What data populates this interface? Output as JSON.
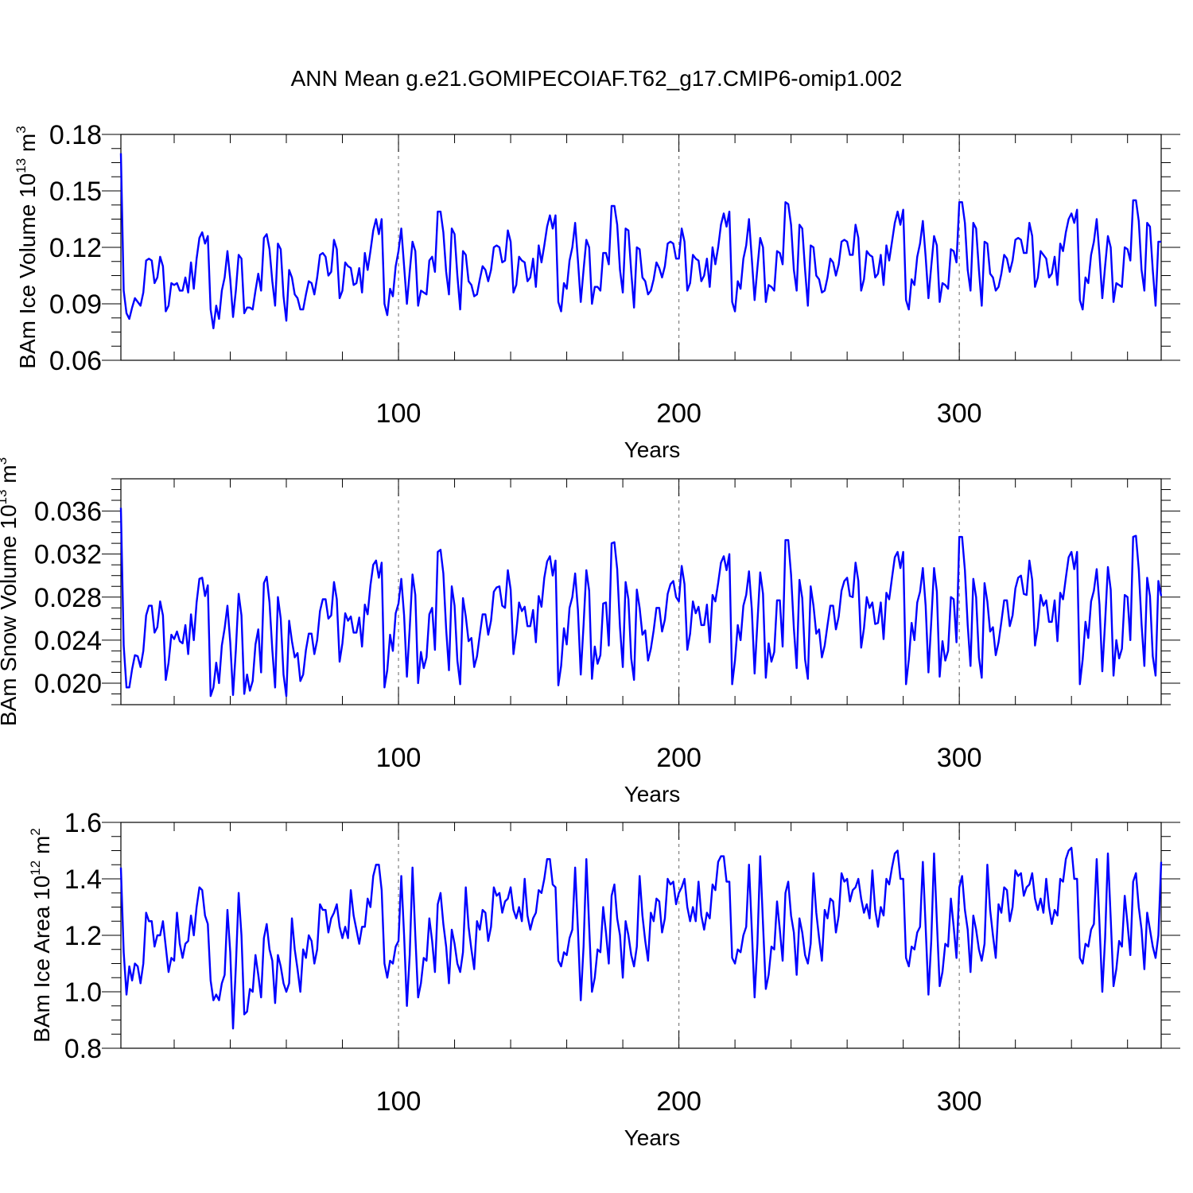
{
  "figure_title": "ANN Mean g.e21.GOMIPECOIAF.T62_g17.CMIP6-omip1.002",
  "colors": {
    "line": "#0000ff",
    "axis": "#000000",
    "refline": "#808080",
    "background": "#ffffff"
  },
  "chart_data": [
    {
      "type": "line",
      "title": "",
      "xlabel": "Years",
      "ylabel_main": "BAm Ice Volume 10",
      "ylabel_exp": "13",
      "ylabel_unit": " m",
      "ylabel_unit_exp": "3",
      "xlim": [
        1,
        372
      ],
      "ylim": [
        0.06,
        0.18
      ],
      "xticks": [
        100,
        200,
        300
      ],
      "xtick_labels": [
        "100",
        "200",
        "300"
      ],
      "yticks": [
        0.06,
        0.09,
        0.12,
        0.15,
        0.18
      ],
      "ytick_labels": [
        "0.06",
        "0.09",
        "0.12",
        "0.15",
        "0.18"
      ],
      "ref_lines_x": [
        100,
        200,
        300
      ],
      "x_start": 1,
      "values": [
        0.17,
        0.097,
        0.085,
        0.082,
        0.088,
        0.093,
        0.091,
        0.089,
        0.096,
        0.113,
        0.114,
        0.113,
        0.101,
        0.104,
        0.115,
        0.11,
        0.086,
        0.089,
        0.101,
        0.1,
        0.101,
        0.097,
        0.097,
        0.104,
        0.096,
        0.112,
        0.098,
        0.114,
        0.125,
        0.128,
        0.122,
        0.126,
        0.087,
        0.077,
        0.089,
        0.082,
        0.097,
        0.104,
        0.118,
        0.103,
        0.083,
        0.097,
        0.116,
        0.114,
        0.085,
        0.088,
        0.088,
        0.087,
        0.097,
        0.106,
        0.097,
        0.125,
        0.127,
        0.119,
        0.102,
        0.089,
        0.122,
        0.119,
        0.094,
        0.081,
        0.108,
        0.104,
        0.095,
        0.093,
        0.087,
        0.087,
        0.095,
        0.102,
        0.101,
        0.095,
        0.104,
        0.116,
        0.117,
        0.115,
        0.105,
        0.107,
        0.124,
        0.119,
        0.093,
        0.097,
        0.112,
        0.11,
        0.109,
        0.1,
        0.101,
        0.109,
        0.096,
        0.117,
        0.108,
        0.118,
        0.129,
        0.135,
        0.127,
        0.135,
        0.09,
        0.084,
        0.098,
        0.094,
        0.11,
        0.118,
        0.13,
        0.11,
        0.09,
        0.107,
        0.123,
        0.118,
        0.089,
        0.097,
        0.096,
        0.095,
        0.113,
        0.115,
        0.107,
        0.139,
        0.139,
        0.128,
        0.107,
        0.095,
        0.13,
        0.127,
        0.105,
        0.087,
        0.118,
        0.116,
        0.102,
        0.1,
        0.094,
        0.095,
        0.103,
        0.11,
        0.108,
        0.102,
        0.108,
        0.12,
        0.121,
        0.12,
        0.112,
        0.113,
        0.129,
        0.123,
        0.096,
        0.1,
        0.115,
        0.113,
        0.112,
        0.102,
        0.104,
        0.114,
        0.099,
        0.121,
        0.112,
        0.121,
        0.131,
        0.137,
        0.13,
        0.137,
        0.091,
        0.086,
        0.101,
        0.098,
        0.113,
        0.12,
        0.133,
        0.113,
        0.091,
        0.108,
        0.124,
        0.12,
        0.09,
        0.099,
        0.099,
        0.097,
        0.117,
        0.117,
        0.111,
        0.142,
        0.142,
        0.132,
        0.108,
        0.096,
        0.13,
        0.129,
        0.107,
        0.088,
        0.12,
        0.119,
        0.104,
        0.102,
        0.095,
        0.097,
        0.103,
        0.112,
        0.109,
        0.104,
        0.11,
        0.122,
        0.123,
        0.122,
        0.114,
        0.114,
        0.13,
        0.123,
        0.097,
        0.101,
        0.116,
        0.114,
        0.113,
        0.102,
        0.105,
        0.114,
        0.099,
        0.12,
        0.111,
        0.12,
        0.132,
        0.138,
        0.131,
        0.139,
        0.091,
        0.086,
        0.102,
        0.098,
        0.114,
        0.121,
        0.135,
        0.114,
        0.092,
        0.109,
        0.125,
        0.12,
        0.091,
        0.1,
        0.099,
        0.097,
        0.118,
        0.117,
        0.111,
        0.144,
        0.143,
        0.132,
        0.108,
        0.097,
        0.132,
        0.13,
        0.108,
        0.089,
        0.121,
        0.12,
        0.105,
        0.103,
        0.096,
        0.097,
        0.104,
        0.114,
        0.112,
        0.105,
        0.111,
        0.123,
        0.124,
        0.123,
        0.116,
        0.116,
        0.132,
        0.125,
        0.097,
        0.103,
        0.118,
        0.116,
        0.115,
        0.104,
        0.106,
        0.116,
        0.1,
        0.121,
        0.113,
        0.123,
        0.133,
        0.139,
        0.132,
        0.14,
        0.092,
        0.087,
        0.103,
        0.1,
        0.115,
        0.122,
        0.134,
        0.115,
        0.093,
        0.11,
        0.126,
        0.121,
        0.091,
        0.101,
        0.1,
        0.098,
        0.119,
        0.118,
        0.112,
        0.144,
        0.144,
        0.133,
        0.108,
        0.097,
        0.133,
        0.13,
        0.108,
        0.089,
        0.123,
        0.122,
        0.106,
        0.104,
        0.097,
        0.099,
        0.106,
        0.116,
        0.114,
        0.107,
        0.113,
        0.124,
        0.125,
        0.124,
        0.117,
        0.117,
        0.133,
        0.126,
        0.099,
        0.104,
        0.118,
        0.116,
        0.114,
        0.104,
        0.106,
        0.115,
        0.1,
        0.122,
        0.118,
        0.128,
        0.135,
        0.138,
        0.133,
        0.14,
        0.092,
        0.087,
        0.104,
        0.101,
        0.116,
        0.123,
        0.135,
        0.116,
        0.093,
        0.11,
        0.126,
        0.12,
        0.091,
        0.101,
        0.1,
        0.099,
        0.12,
        0.119,
        0.113,
        0.145,
        0.145,
        0.134,
        0.108,
        0.097,
        0.133,
        0.131,
        0.108,
        0.089,
        0.123,
        0.123
      ]
    },
    {
      "type": "line",
      "title": "",
      "xlabel": "Years",
      "ylabel_main": "BAm Snow Volume 10",
      "ylabel_exp": "13",
      "ylabel_unit": " m",
      "ylabel_unit_exp": "3",
      "xlim": [
        1,
        372
      ],
      "ylim": [
        0.018,
        0.039
      ],
      "xticks": [
        100,
        200,
        300
      ],
      "xtick_labels": [
        "100",
        "200",
        "300"
      ],
      "yticks": [
        0.02,
        0.024,
        0.028,
        0.032,
        0.036
      ],
      "ytick_labels": [
        "0.020",
        "0.024",
        "0.028",
        "0.032",
        "0.036"
      ],
      "ref_lines_x": [
        100,
        200,
        300
      ],
      "x_start": 1,
      "values": [
        0.0363,
        0.0235,
        0.0196,
        0.0196,
        0.0213,
        0.0226,
        0.0225,
        0.0215,
        0.023,
        0.0263,
        0.0272,
        0.0272,
        0.0247,
        0.0252,
        0.0276,
        0.0263,
        0.0203,
        0.0219,
        0.0245,
        0.0241,
        0.0248,
        0.0239,
        0.0237,
        0.0254,
        0.0227,
        0.0264,
        0.024,
        0.0275,
        0.0297,
        0.0298,
        0.0281,
        0.0291,
        0.0188,
        0.0196,
        0.0219,
        0.02,
        0.0235,
        0.0251,
        0.0272,
        0.0238,
        0.0189,
        0.0231,
        0.0283,
        0.0263,
        0.019,
        0.0208,
        0.0193,
        0.0202,
        0.0236,
        0.025,
        0.021,
        0.0293,
        0.0299,
        0.0275,
        0.0231,
        0.0196,
        0.028,
        0.026,
        0.0208,
        0.0188,
        0.0258,
        0.0239,
        0.0224,
        0.0228,
        0.0202,
        0.0208,
        0.0231,
        0.0246,
        0.0246,
        0.0227,
        0.024,
        0.0267,
        0.0278,
        0.0278,
        0.026,
        0.0263,
        0.0294,
        0.0278,
        0.022,
        0.0237,
        0.0265,
        0.0258,
        0.0262,
        0.0247,
        0.0247,
        0.0261,
        0.0234,
        0.0273,
        0.0264,
        0.0291,
        0.031,
        0.0314,
        0.0298,
        0.0312,
        0.0196,
        0.0212,
        0.0245,
        0.023,
        0.0265,
        0.0274,
        0.0297,
        0.0263,
        0.0206,
        0.0251,
        0.0301,
        0.0282,
        0.02,
        0.0229,
        0.0214,
        0.0224,
        0.0264,
        0.027,
        0.0231,
        0.0322,
        0.0324,
        0.0302,
        0.025,
        0.0212,
        0.029,
        0.0272,
        0.0221,
        0.0199,
        0.0279,
        0.0262,
        0.0239,
        0.0242,
        0.0215,
        0.0225,
        0.0245,
        0.0264,
        0.0264,
        0.0245,
        0.0258,
        0.0285,
        0.0289,
        0.029,
        0.0272,
        0.027,
        0.0305,
        0.0287,
        0.0227,
        0.0247,
        0.0275,
        0.0267,
        0.0271,
        0.0253,
        0.0253,
        0.0268,
        0.0238,
        0.0281,
        0.0271,
        0.0298,
        0.0313,
        0.0318,
        0.03,
        0.0314,
        0.0198,
        0.0216,
        0.0251,
        0.0236,
        0.027,
        0.028,
        0.0302,
        0.0268,
        0.0208,
        0.0254,
        0.0305,
        0.0286,
        0.0204,
        0.0234,
        0.0218,
        0.0226,
        0.0274,
        0.0275,
        0.0235,
        0.033,
        0.0331,
        0.0306,
        0.0252,
        0.0215,
        0.0294,
        0.0278,
        0.0223,
        0.0203,
        0.0287,
        0.027,
        0.0245,
        0.0249,
        0.0221,
        0.0232,
        0.0249,
        0.027,
        0.027,
        0.0248,
        0.0259,
        0.0283,
        0.0292,
        0.0295,
        0.028,
        0.0276,
        0.0309,
        0.0292,
        0.0231,
        0.0246,
        0.0276,
        0.0265,
        0.0271,
        0.0254,
        0.0254,
        0.0273,
        0.0238,
        0.0282,
        0.0276,
        0.0293,
        0.0312,
        0.0318,
        0.0305,
        0.032,
        0.0199,
        0.0221,
        0.0254,
        0.024,
        0.0272,
        0.0282,
        0.0304,
        0.0269,
        0.0209,
        0.0256,
        0.0303,
        0.0283,
        0.0205,
        0.0237,
        0.022,
        0.0229,
        0.0277,
        0.0277,
        0.0234,
        0.0333,
        0.0333,
        0.0301,
        0.0251,
        0.0214,
        0.0296,
        0.0279,
        0.0222,
        0.0204,
        0.029,
        0.0272,
        0.0246,
        0.025,
        0.0224,
        0.0235,
        0.0254,
        0.0272,
        0.0272,
        0.025,
        0.0262,
        0.0286,
        0.0295,
        0.0298,
        0.0281,
        0.028,
        0.0312,
        0.0295,
        0.0233,
        0.0251,
        0.028,
        0.027,
        0.0275,
        0.0255,
        0.0256,
        0.0275,
        0.0241,
        0.0284,
        0.0278,
        0.0298,
        0.0317,
        0.0322,
        0.0307,
        0.0322,
        0.0199,
        0.0222,
        0.0256,
        0.024,
        0.0275,
        0.0285,
        0.0307,
        0.0272,
        0.021,
        0.0257,
        0.0307,
        0.0285,
        0.0206,
        0.0239,
        0.0221,
        0.023,
        0.028,
        0.0278,
        0.0238,
        0.0336,
        0.0336,
        0.0305,
        0.0254,
        0.0216,
        0.0297,
        0.028,
        0.0224,
        0.0205,
        0.0293,
        0.0276,
        0.0248,
        0.0252,
        0.0226,
        0.0238,
        0.0257,
        0.0277,
        0.0277,
        0.0253,
        0.0263,
        0.0288,
        0.0298,
        0.03,
        0.0283,
        0.0282,
        0.0314,
        0.0296,
        0.0235,
        0.0252,
        0.0282,
        0.0272,
        0.0277,
        0.0257,
        0.0257,
        0.0277,
        0.0239,
        0.0284,
        0.0278,
        0.0298,
        0.0317,
        0.0322,
        0.0306,
        0.0322,
        0.0199,
        0.0222,
        0.0257,
        0.0242,
        0.0276,
        0.0286,
        0.0306,
        0.0273,
        0.0211,
        0.0257,
        0.0308,
        0.0287,
        0.0207,
        0.024,
        0.0223,
        0.0232,
        0.0282,
        0.028,
        0.024,
        0.0336,
        0.0337,
        0.0306,
        0.0255,
        0.0216,
        0.0298,
        0.0281,
        0.0225,
        0.0207,
        0.0295,
        0.0281
      ]
    },
    {
      "type": "line",
      "title": "",
      "xlabel": "Years",
      "ylabel_main": "BAm Ice Area 10",
      "ylabel_exp": "12",
      "ylabel_unit": " m",
      "ylabel_unit_exp": "2",
      "xlim": [
        1,
        372
      ],
      "ylim": [
        0.8,
        1.6
      ],
      "xticks": [
        100,
        200,
        300
      ],
      "xtick_labels": [
        "100",
        "200",
        "300"
      ],
      "yticks": [
        0.8,
        1.0,
        1.2,
        1.4,
        1.6
      ],
      "ytick_labels": [
        "0.8",
        "1.0",
        "1.2",
        "1.4",
        "1.6"
      ],
      "ref_lines_x": [
        100,
        200,
        300
      ],
      "x_start": 1,
      "values": [
        1.44,
        1.14,
        0.99,
        1.09,
        1.04,
        1.1,
        1.09,
        1.03,
        1.1,
        1.28,
        1.25,
        1.25,
        1.16,
        1.2,
        1.2,
        1.25,
        1.16,
        1.07,
        1.12,
        1.11,
        1.28,
        1.17,
        1.12,
        1.17,
        1.18,
        1.27,
        1.2,
        1.3,
        1.37,
        1.36,
        1.27,
        1.24,
        1.04,
        0.97,
        0.99,
        0.97,
        1.03,
        1.06,
        1.29,
        1.14,
        0.87,
        1.09,
        1.35,
        1.2,
        0.92,
        0.93,
        1.01,
        1.0,
        1.13,
        1.06,
        0.98,
        1.19,
        1.24,
        1.15,
        1.11,
        0.96,
        1.13,
        1.09,
        1.03,
        1.0,
        1.03,
        1.26,
        1.15,
        1.08,
        1.0,
        1.15,
        1.12,
        1.2,
        1.18,
        1.1,
        1.15,
        1.31,
        1.29,
        1.29,
        1.21,
        1.26,
        1.28,
        1.31,
        1.23,
        1.19,
        1.23,
        1.19,
        1.36,
        1.27,
        1.22,
        1.17,
        1.23,
        1.23,
        1.33,
        1.3,
        1.41,
        1.45,
        1.45,
        1.36,
        1.1,
        1.05,
        1.11,
        1.1,
        1.16,
        1.18,
        1.41,
        1.2,
        0.95,
        1.13,
        1.44,
        1.2,
        0.98,
        1.03,
        1.12,
        1.11,
        1.26,
        1.18,
        1.07,
        1.31,
        1.35,
        1.24,
        1.16,
        1.03,
        1.22,
        1.17,
        1.1,
        1.07,
        1.14,
        1.37,
        1.23,
        1.15,
        1.08,
        1.25,
        1.22,
        1.29,
        1.28,
        1.18,
        1.23,
        1.37,
        1.34,
        1.35,
        1.28,
        1.32,
        1.33,
        1.37,
        1.29,
        1.26,
        1.3,
        1.25,
        1.4,
        1.27,
        1.22,
        1.26,
        1.28,
        1.36,
        1.35,
        1.4,
        1.47,
        1.47,
        1.38,
        1.37,
        1.11,
        1.09,
        1.14,
        1.13,
        1.19,
        1.22,
        1.44,
        1.22,
        0.97,
        1.16,
        1.47,
        1.23,
        1.0,
        1.05,
        1.15,
        1.14,
        1.3,
        1.21,
        1.1,
        1.34,
        1.38,
        1.26,
        1.2,
        1.05,
        1.25,
        1.2,
        1.13,
        1.09,
        1.16,
        1.41,
        1.27,
        1.18,
        1.11,
        1.28,
        1.25,
        1.33,
        1.32,
        1.21,
        1.26,
        1.4,
        1.38,
        1.39,
        1.31,
        1.35,
        1.37,
        1.4,
        1.3,
        1.25,
        1.3,
        1.25,
        1.39,
        1.27,
        1.22,
        1.28,
        1.26,
        1.38,
        1.36,
        1.46,
        1.48,
        1.48,
        1.39,
        1.39,
        1.12,
        1.1,
        1.15,
        1.14,
        1.2,
        1.23,
        1.45,
        1.22,
        0.98,
        1.17,
        1.48,
        1.24,
        1.01,
        1.06,
        1.16,
        1.15,
        1.32,
        1.22,
        1.11,
        1.35,
        1.39,
        1.27,
        1.21,
        1.06,
        1.26,
        1.21,
        1.13,
        1.1,
        1.17,
        1.42,
        1.28,
        1.19,
        1.11,
        1.29,
        1.26,
        1.33,
        1.32,
        1.21,
        1.27,
        1.42,
        1.39,
        1.4,
        1.32,
        1.36,
        1.37,
        1.4,
        1.33,
        1.28,
        1.31,
        1.26,
        1.43,
        1.29,
        1.23,
        1.3,
        1.27,
        1.4,
        1.38,
        1.44,
        1.49,
        1.5,
        1.4,
        1.4,
        1.12,
        1.09,
        1.16,
        1.15,
        1.21,
        1.23,
        1.46,
        1.23,
        0.99,
        1.18,
        1.49,
        1.25,
        1.02,
        1.07,
        1.17,
        1.16,
        1.33,
        1.23,
        1.12,
        1.37,
        1.41,
        1.29,
        1.22,
        1.07,
        1.27,
        1.22,
        1.15,
        1.11,
        1.17,
        1.45,
        1.29,
        1.2,
        1.12,
        1.31,
        1.28,
        1.37,
        1.36,
        1.25,
        1.3,
        1.43,
        1.41,
        1.42,
        1.34,
        1.37,
        1.38,
        1.42,
        1.33,
        1.29,
        1.33,
        1.28,
        1.4,
        1.3,
        1.24,
        1.29,
        1.27,
        1.4,
        1.39,
        1.47,
        1.5,
        1.51,
        1.4,
        1.4,
        1.12,
        1.1,
        1.17,
        1.16,
        1.22,
        1.24,
        1.47,
        1.24,
        1.0,
        1.19,
        1.49,
        1.26,
        1.02,
        1.08,
        1.18,
        1.16,
        1.34,
        1.24,
        1.13,
        1.39,
        1.42,
        1.3,
        1.22,
        1.08,
        1.28,
        1.22,
        1.16,
        1.12,
        1.2,
        1.46
      ]
    }
  ]
}
